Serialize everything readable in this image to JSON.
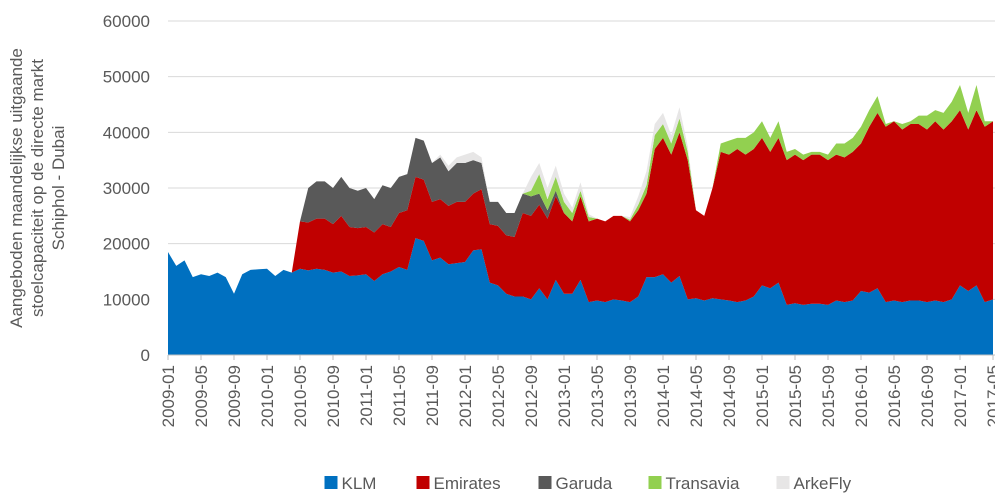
{
  "chart_data": {
    "type": "stacked-area",
    "y_label": [
      "Aangeboden maandelijkse uitgaande",
      "stoelcapaciteit op de directe markt",
      "Schiphol - Dubai"
    ],
    "categories": [
      "2009-01",
      null,
      null,
      null,
      "2009-05",
      null,
      null,
      null,
      "2009-09",
      null,
      null,
      null,
      "2010-01",
      null,
      null,
      null,
      "2010-05",
      null,
      null,
      null,
      "2010-09",
      null,
      null,
      null,
      "2011-01",
      null,
      null,
      null,
      "2011-05",
      null,
      null,
      null,
      "2011-09",
      null,
      null,
      null,
      "2012-01",
      null,
      null,
      null,
      "2012-05",
      null,
      null,
      null,
      "2012-09",
      null,
      null,
      null,
      "2013-01",
      null,
      null,
      null,
      "2013-05",
      null,
      null,
      null,
      "2013-09",
      null,
      null,
      null,
      "2014-01",
      null,
      null,
      null,
      "2014-05",
      null,
      null,
      null,
      "2014-09",
      null,
      null,
      null,
      "2015-01",
      null,
      null,
      null,
      "2015-05",
      null,
      null,
      null,
      "2015-09",
      null,
      null,
      null,
      "2016-01",
      null,
      null,
      null,
      "2016-05",
      null,
      null,
      null,
      "2016-09",
      null,
      null,
      null,
      "2017-01",
      null,
      null,
      null,
      "2017-05"
    ],
    "series": [
      {
        "name": "KLM",
        "color": "#0070c0",
        "values": [
          18500,
          16000,
          17000,
          14000,
          14500,
          14200,
          14800,
          14000,
          11000,
          14500,
          15300,
          15400,
          15500,
          14200,
          15300,
          14800,
          15500,
          15200,
          15500,
          15300,
          14800,
          15000,
          14200,
          14300,
          14500,
          13300,
          14500,
          15000,
          15800,
          15300,
          21000,
          20500,
          17000,
          17500,
          16300,
          16500,
          16700,
          18800,
          19000,
          13000,
          12500,
          11000,
          10500,
          10500,
          10000,
          12000,
          10000,
          13500,
          11000,
          11000,
          13500,
          9500,
          9800,
          9500,
          10000,
          9800,
          9500,
          10500,
          14000,
          14000,
          14500,
          13000,
          14200,
          10000,
          10200,
          9800,
          10200,
          10000,
          9800,
          9500,
          9800,
          10500,
          12500,
          12000,
          13000,
          9000,
          9300,
          9000,
          9200,
          9200,
          9000,
          9800,
          9500,
          9800,
          11500,
          11200,
          12000,
          9500,
          9800,
          9500,
          9800,
          9800,
          9500,
          9800,
          9500,
          10000,
          12500,
          11500,
          12500,
          9500,
          10000
        ]
      },
      {
        "name": "Emirates",
        "color": "#c00000",
        "values": [
          0,
          0,
          0,
          0,
          0,
          0,
          0,
          0,
          0,
          0,
          0,
          0,
          0,
          0,
          0,
          0,
          8500,
          8600,
          9000,
          9200,
          8700,
          10000,
          8800,
          8500,
          8500,
          8700,
          9000,
          8000,
          9700,
          10700,
          11000,
          11000,
          10500,
          10500,
          10500,
          11000,
          10800,
          10200,
          10800,
          10500,
          10700,
          10500,
          10700,
          15000,
          15000,
          15000,
          14500,
          15000,
          14500,
          13000,
          15000,
          14500,
          14700,
          14500,
          15000,
          15200,
          14500,
          15500,
          15000,
          23000,
          24500,
          23000,
          25800,
          25000,
          15800,
          15200,
          19800,
          26500,
          26200,
          27500,
          26200,
          26500,
          26500,
          24500,
          26000,
          26000,
          26700,
          26000,
          26800,
          26800,
          26000,
          26200,
          26000,
          26700,
          26500,
          29800,
          31500,
          31500,
          32200,
          31000,
          31700,
          31700,
          31000,
          32200,
          31000,
          32000,
          31500,
          29000,
          31500,
          31500,
          32000
        ]
      },
      {
        "name": "Garuda",
        "color": "#595959",
        "values": [
          0,
          0,
          0,
          0,
          0,
          0,
          0,
          0,
          0,
          0,
          0,
          0,
          0,
          0,
          0,
          0,
          0,
          6200,
          6700,
          6700,
          6500,
          7000,
          7000,
          6700,
          7000,
          6000,
          7000,
          7000,
          6500,
          6500,
          7000,
          7000,
          7000,
          7500,
          6200,
          7000,
          7000,
          6000,
          4700,
          4000,
          4300,
          4000,
          4300,
          3500,
          3500,
          2000,
          1500,
          1000,
          0,
          0,
          0,
          0,
          0,
          0,
          0,
          0,
          0,
          0,
          0,
          0,
          0,
          0,
          0,
          0,
          0,
          0,
          0,
          0,
          0,
          0,
          0,
          0,
          0,
          0,
          0,
          0,
          0,
          0,
          0,
          0,
          0,
          0,
          0,
          0,
          0,
          0,
          0,
          0,
          0,
          0,
          0,
          0,
          0,
          0,
          0,
          0,
          0,
          0,
          0,
          0,
          0
        ]
      },
      {
        "name": "Transavia",
        "color": "#92d050",
        "values": [
          0,
          0,
          0,
          0,
          0,
          0,
          0,
          0,
          0,
          0,
          0,
          0,
          0,
          0,
          0,
          0,
          0,
          0,
          0,
          0,
          0,
          0,
          0,
          0,
          0,
          0,
          0,
          0,
          0,
          0,
          0,
          0,
          0,
          0,
          0,
          0,
          0,
          0,
          0,
          0,
          0,
          0,
          0,
          0,
          1000,
          3500,
          2000,
          2500,
          2000,
          1500,
          1000,
          800,
          0,
          0,
          0,
          0,
          300,
          1000,
          1500,
          2500,
          2500,
          2000,
          2500,
          1500,
          0,
          0,
          0,
          1500,
          2500,
          2000,
          3000,
          3000,
          3000,
          2500,
          3000,
          1500,
          1000,
          1000,
          500,
          500,
          1000,
          2000,
          2500,
          2500,
          3000,
          3000,
          3000,
          500,
          0,
          1000,
          500,
          1500,
          2500,
          2000,
          3000,
          3500,
          4500,
          3000,
          4500,
          1000,
          0
        ]
      },
      {
        "name": "ArkeFly",
        "color": "#e7e6e6",
        "values": [
          0,
          0,
          0,
          0,
          0,
          0,
          0,
          0,
          0,
          0,
          0,
          0,
          0,
          0,
          0,
          0,
          0,
          0,
          0,
          0,
          0,
          0,
          0,
          0,
          0,
          0,
          0,
          0,
          0,
          0,
          0,
          0,
          0,
          500,
          1000,
          1000,
          1500,
          1500,
          1000,
          0,
          0,
          0,
          0,
          0,
          2500,
          2000,
          2000,
          2000,
          1500,
          1000,
          1500,
          500,
          0,
          0,
          0,
          0,
          500,
          1500,
          2500,
          2000,
          2000,
          1500,
          2000,
          1000,
          0,
          0,
          0,
          0,
          0,
          0,
          0,
          0,
          0,
          0,
          0,
          0,
          0,
          0,
          0,
          0,
          0,
          0,
          0,
          0,
          0,
          0,
          0,
          0,
          0,
          0,
          0,
          0,
          0,
          0,
          0,
          0,
          0,
          0,
          0,
          0,
          0
        ]
      }
    ],
    "ylim": [
      0,
      60000
    ],
    "yticks": [
      0,
      10000,
      20000,
      30000,
      40000,
      50000,
      60000
    ],
    "grid": true,
    "legend": "bottom"
  }
}
